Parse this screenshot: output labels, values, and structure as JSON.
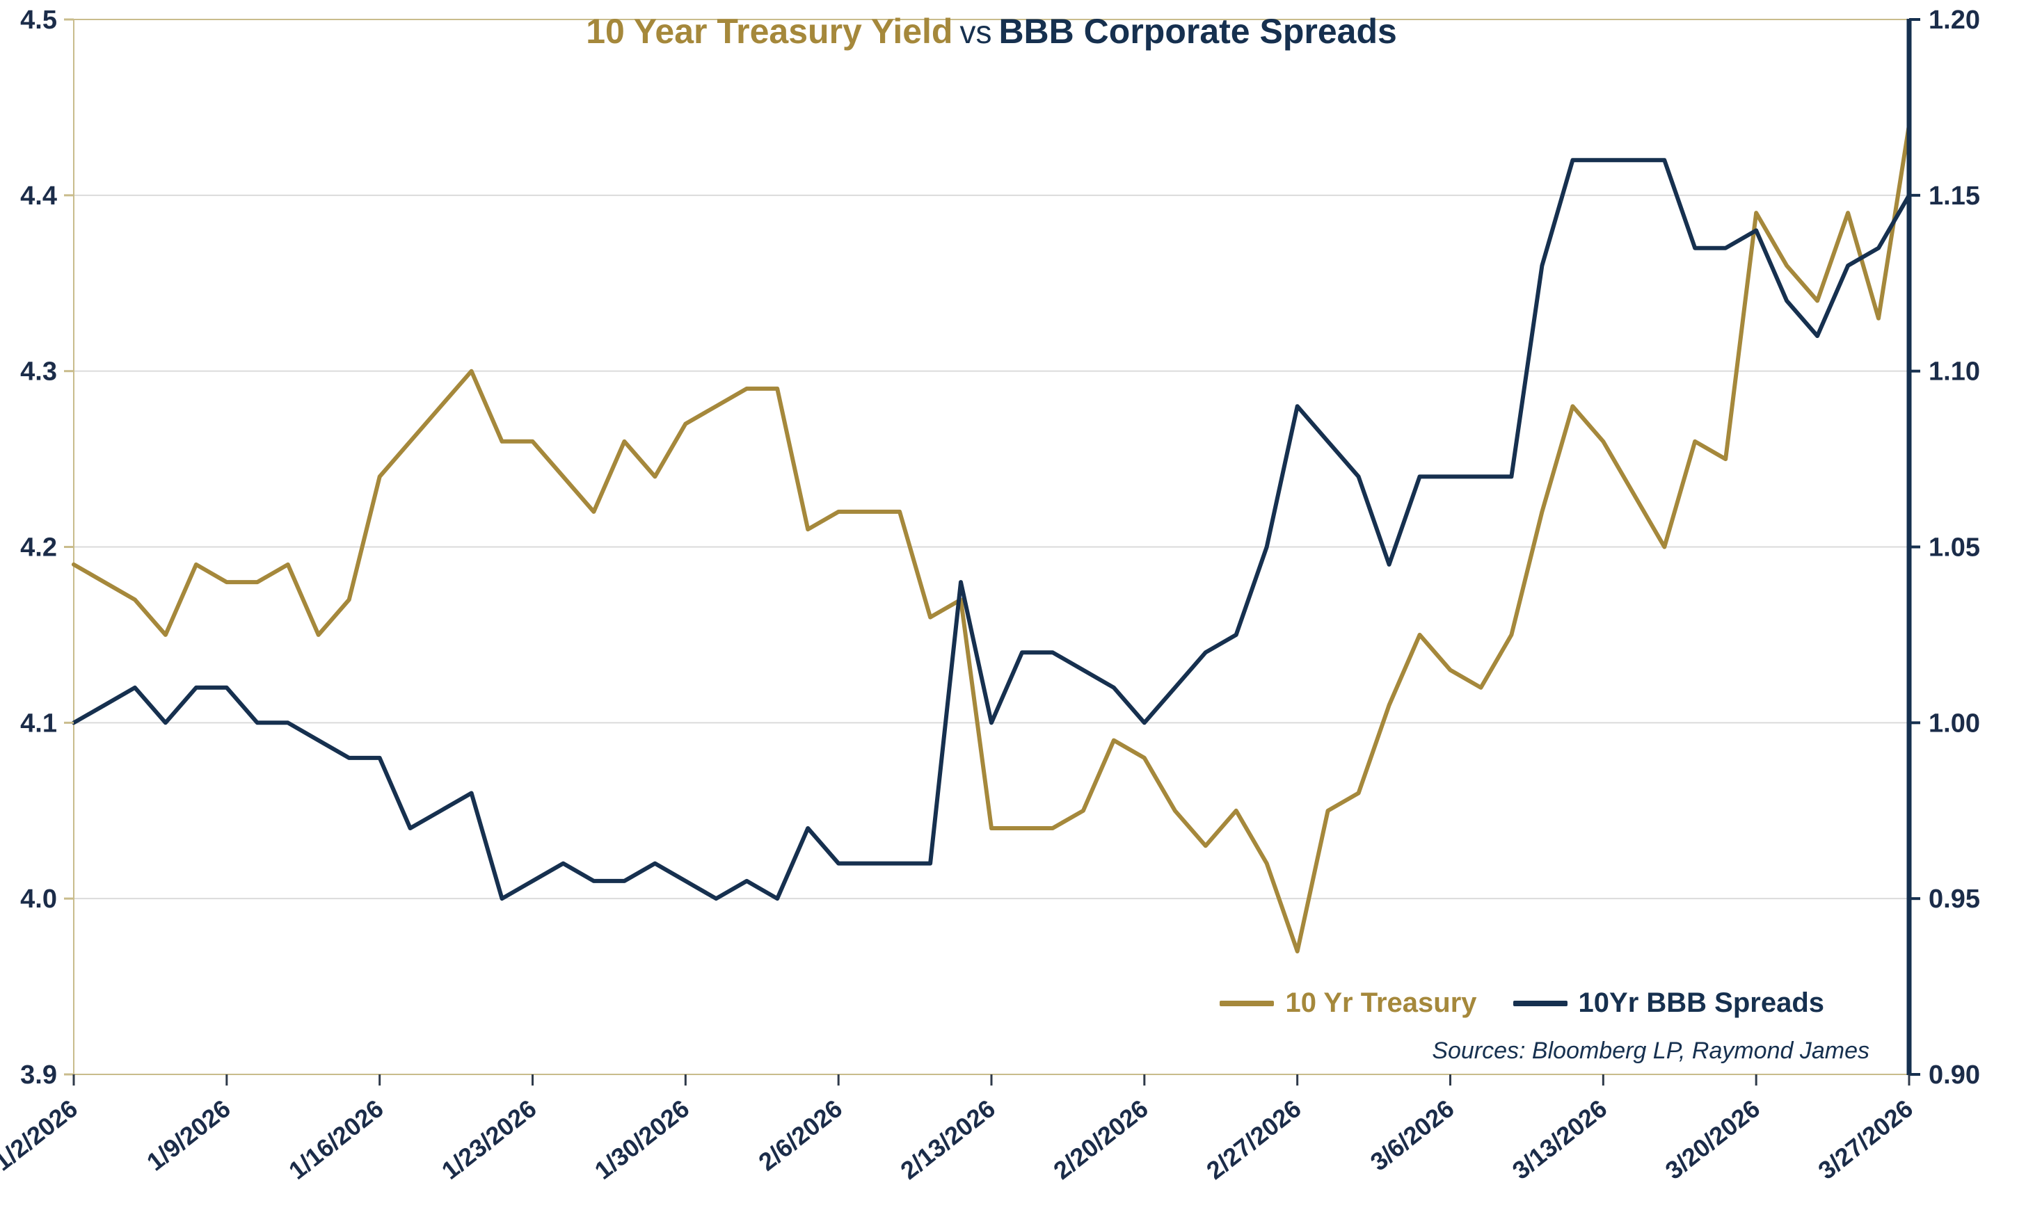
{
  "title": {
    "part1": "10 Year Treasury Yield",
    "part2": "vs",
    "part3": "BBB Corporate Spreads"
  },
  "legend": {
    "treasury": "10 Yr Treasury",
    "spreads": "10Yr BBB Spreads"
  },
  "sources": "Sources: Bloomberg LP, Raymond James",
  "colors": {
    "gold": "#A5883B",
    "navy": "#16304F",
    "grid": "#DBDBDB",
    "frame": "#C9BC8C",
    "axis_text": "#1B2C49",
    "tick_dark": "#2F3A4A",
    "background": "#FFFFFF"
  },
  "chart_data": {
    "type": "line",
    "title": "10 Year Treasury Yield vs BBB Corporate Spreads",
    "grid": "horizontal",
    "legend_position": "inside-bottom-right",
    "x_label_rotation": -38,
    "x": [
      "1/2/2026",
      "1/5/2026",
      "1/6/2026",
      "1/7/2026",
      "1/8/2026",
      "1/9/2026",
      "1/12/2026",
      "1/13/2026",
      "1/14/2026",
      "1/15/2026",
      "1/16/2026",
      "1/19/2026",
      "1/20/2026",
      "1/21/2026",
      "1/22/2026",
      "1/23/2026",
      "1/26/2026",
      "1/27/2026",
      "1/28/2026",
      "1/29/2026",
      "1/30/2026",
      "2/2/2026",
      "2/3/2026",
      "2/4/2026",
      "2/5/2026",
      "2/6/2026",
      "2/9/2026",
      "2/10/2026",
      "2/11/2026",
      "2/12/2026",
      "2/13/2026",
      "2/16/2026",
      "2/17/2026",
      "2/18/2026",
      "2/19/2026",
      "2/20/2026",
      "2/23/2026",
      "2/24/2026",
      "2/25/2026",
      "2/26/2026",
      "2/27/2026",
      "3/2/2026",
      "3/3/2026",
      "3/4/2026",
      "3/5/2026",
      "3/6/2026",
      "3/9/2026",
      "3/10/2026",
      "3/11/2026",
      "3/12/2026",
      "3/13/2026",
      "3/16/2026",
      "3/17/2026",
      "3/18/2026",
      "3/19/2026",
      "3/20/2026",
      "3/23/2026",
      "3/24/2026",
      "3/25/2026",
      "3/26/2026",
      "3/27/2026"
    ],
    "x_tick_labels": [
      "1/2/2026",
      "1/9/2026",
      "1/16/2026",
      "1/23/2026",
      "1/30/2026",
      "2/6/2026",
      "2/13/2026",
      "2/20/2026",
      "2/27/2026",
      "3/6/2026",
      "3/13/2026",
      "3/20/2026",
      "3/27/2026"
    ],
    "series": [
      {
        "name": "10 Yr Treasury",
        "axis": "left",
        "color": "#A5883B",
        "values": [
          4.19,
          4.18,
          4.17,
          4.15,
          4.19,
          4.18,
          4.18,
          4.19,
          4.15,
          4.17,
          4.24,
          4.26,
          4.28,
          4.3,
          4.26,
          4.26,
          4.24,
          4.22,
          4.26,
          4.24,
          4.27,
          4.28,
          4.29,
          4.29,
          4.21,
          4.22,
          4.22,
          4.22,
          4.16,
          4.17,
          4.04,
          4.04,
          4.04,
          4.05,
          4.09,
          4.08,
          4.05,
          4.03,
          4.05,
          4.02,
          3.97,
          4.05,
          4.06,
          4.11,
          4.15,
          4.13,
          4.12,
          4.15,
          4.22,
          4.28,
          4.26,
          4.23,
          4.2,
          4.26,
          4.25,
          4.39,
          4.36,
          4.34,
          4.39,
          4.33,
          4.44
        ]
      },
      {
        "name": "10Yr BBB Spreads",
        "axis": "right",
        "color": "#16304F",
        "values": [
          1.0,
          1.005,
          1.01,
          1.0,
          1.01,
          1.01,
          1.0,
          1.0,
          0.995,
          0.99,
          0.99,
          0.97,
          0.975,
          0.98,
          0.95,
          0.955,
          0.96,
          0.955,
          0.955,
          0.96,
          0.955,
          0.95,
          0.955,
          0.95,
          0.97,
          0.96,
          0.96,
          0.96,
          0.96,
          1.04,
          1.0,
          1.02,
          1.02,
          1.015,
          1.01,
          1.0,
          1.01,
          1.02,
          1.025,
          1.05,
          1.09,
          1.08,
          1.07,
          1.045,
          1.07,
          1.07,
          1.07,
          1.07,
          1.13,
          1.16,
          1.16,
          1.16,
          1.16,
          1.135,
          1.135,
          1.14,
          1.12,
          1.11,
          1.13,
          1.135,
          1.15
        ]
      }
    ],
    "left_axis": {
      "min": 3.9,
      "max": 4.5,
      "ticks": [
        3.9,
        4.0,
        4.1,
        4.2,
        4.3,
        4.4,
        4.5
      ],
      "tick_labels": [
        "3.9",
        "4.0",
        "4.1",
        "4.2",
        "4.3",
        "4.4",
        "4.5"
      ]
    },
    "right_axis": {
      "min": 0.9,
      "max": 1.2,
      "ticks": [
        0.9,
        0.95,
        1.0,
        1.05,
        1.1,
        1.15,
        1.2
      ],
      "tick_labels": [
        "0.90",
        "0.95",
        "1.00",
        "1.05",
        "1.10",
        "1.15",
        "1.20"
      ]
    }
  }
}
